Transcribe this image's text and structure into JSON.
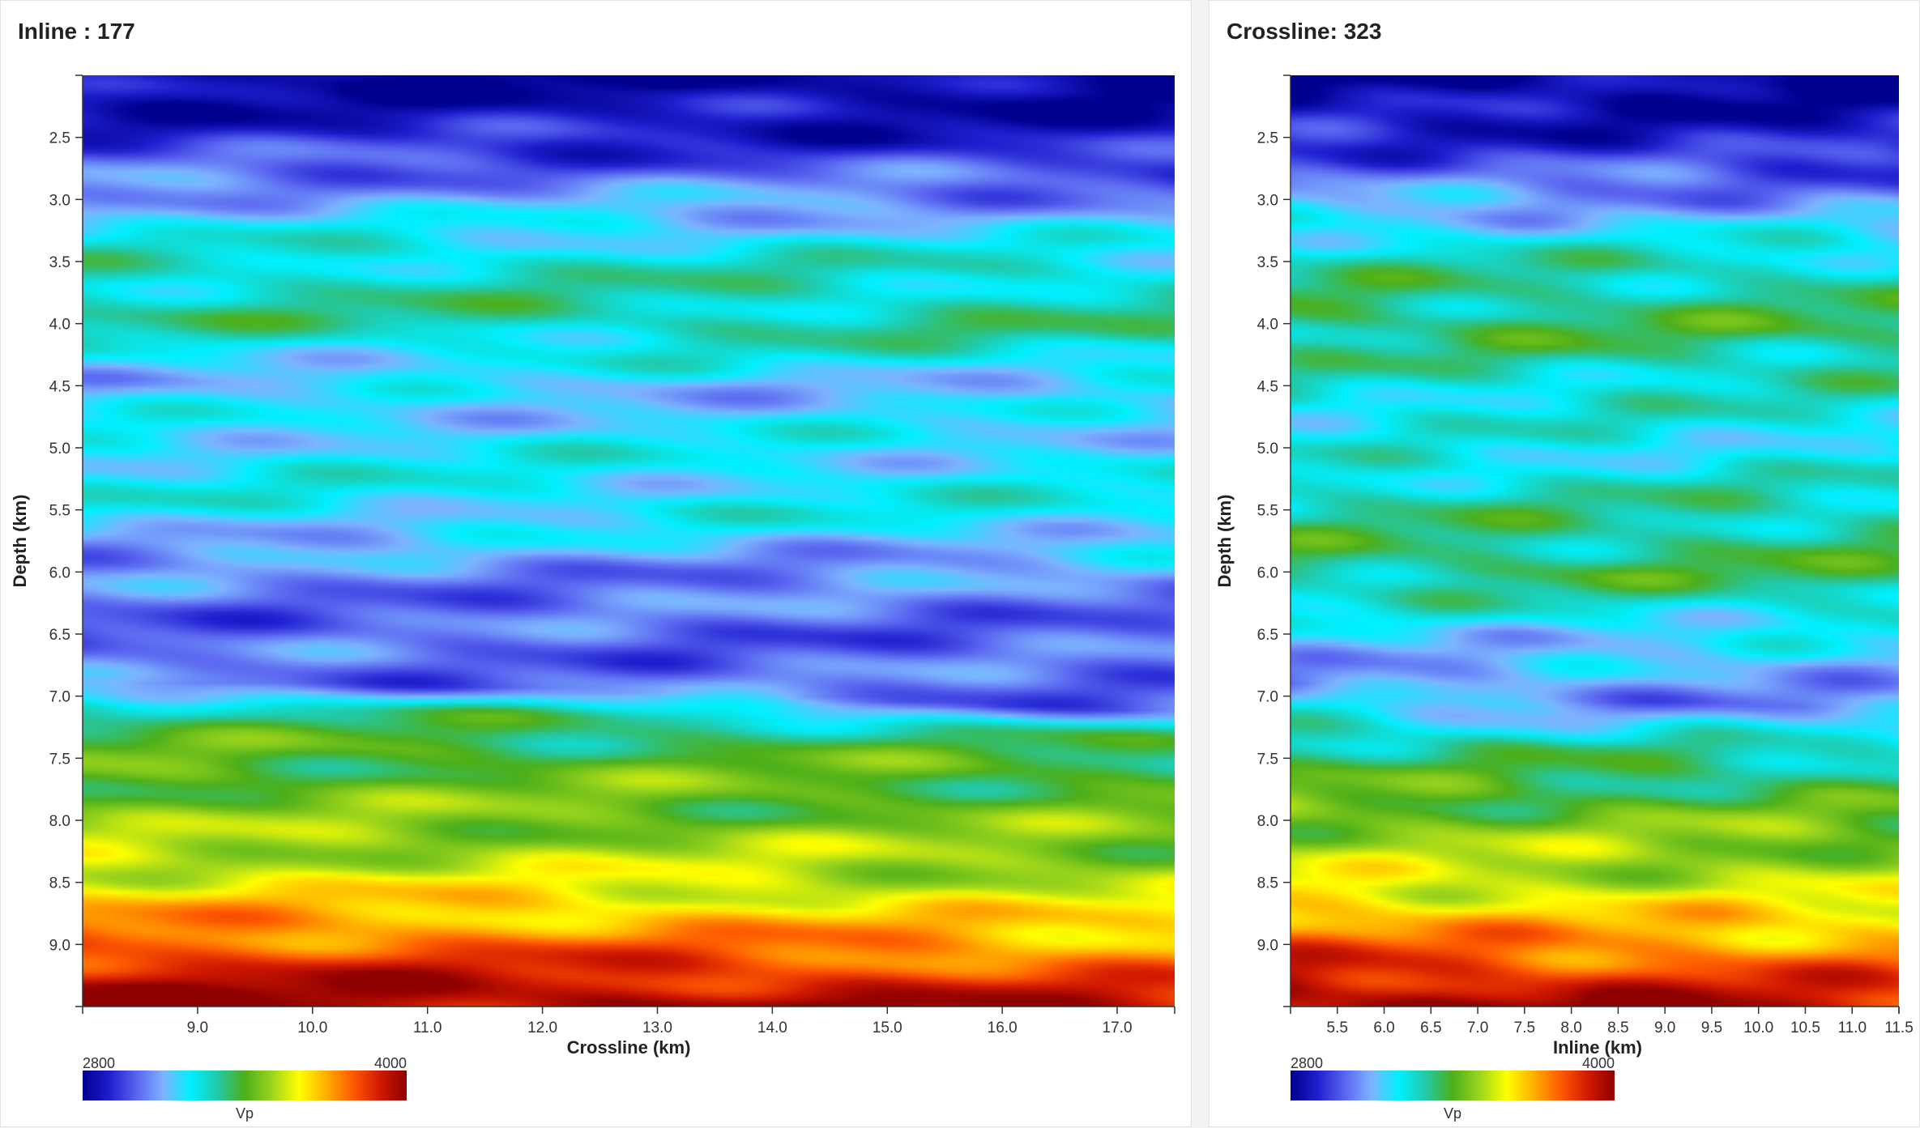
{
  "colormap": [
    "#00008f",
    "#1f1fcf",
    "#5a64f0",
    "#7db4ff",
    "#00f0ff",
    "#22c9a8",
    "#4caf1a",
    "#9ad41c",
    "#ffff00",
    "#ffb000",
    "#ff5a00",
    "#d21a00",
    "#8f0000"
  ],
  "panels": [
    {
      "title": "Inline : 177",
      "chart_data": {
        "type": "heatmap",
        "xlabel": "Crossline (km)",
        "ylabel": "Depth (km)",
        "xlim": [
          8.0,
          17.5
        ],
        "ylim": [
          2.0,
          9.5
        ],
        "xticks": [
          "9.0",
          "10.0",
          "11.0",
          "12.0",
          "13.0",
          "14.0",
          "15.0",
          "16.0",
          "17.0"
        ],
        "yticks": [
          "2.5",
          "3.0",
          "3.5",
          "4.0",
          "4.5",
          "5.0",
          "5.5",
          "6.0",
          "6.5",
          "7.0",
          "7.5",
          "8.0",
          "8.5",
          "9.0"
        ],
        "colorbar": {
          "label": "Vp",
          "min": "2800",
          "max": "4000"
        },
        "depth_profile": [
          {
            "depth": 2.0,
            "vp": 2810
          },
          {
            "depth": 2.5,
            "vp": 2900
          },
          {
            "depth": 3.0,
            "vp": 3080
          },
          {
            "depth": 3.5,
            "vp": 3250
          },
          {
            "depth": 4.0,
            "vp": 3300
          },
          {
            "depth": 4.5,
            "vp": 3120
          },
          {
            "depth": 5.0,
            "vp": 3180
          },
          {
            "depth": 5.5,
            "vp": 3200
          },
          {
            "depth": 6.0,
            "vp": 3050
          },
          {
            "depth": 6.5,
            "vp": 3000
          },
          {
            "depth": 7.0,
            "vp": 3020
          },
          {
            "depth": 7.2,
            "vp": 3300
          },
          {
            "depth": 7.5,
            "vp": 3400
          },
          {
            "depth": 8.0,
            "vp": 3450
          },
          {
            "depth": 8.5,
            "vp": 3550
          },
          {
            "depth": 9.0,
            "vp": 3750
          },
          {
            "depth": 9.5,
            "vp": 3980
          }
        ],
        "lateral_trend": [
          {
            "x": 8.0,
            "shift": -0.35
          },
          {
            "x": 10.0,
            "shift": -0.25
          },
          {
            "x": 12.0,
            "shift": -0.15
          },
          {
            "x": 14.0,
            "shift": 0.0
          },
          {
            "x": 16.0,
            "shift": 0.25
          },
          {
            "x": 17.5,
            "shift": 0.4
          }
        ]
      }
    },
    {
      "title": "Crossline: 323",
      "chart_data": {
        "type": "heatmap",
        "xlabel": "Inline (km)",
        "ylabel": "Depth (km)",
        "xlim": [
          5.0,
          11.5
        ],
        "ylim": [
          2.0,
          9.5
        ],
        "xticks": [
          "5.5",
          "6.0",
          "6.5",
          "7.0",
          "7.5",
          "8.0",
          "8.5",
          "9.0",
          "9.5",
          "10.0",
          "10.5",
          "11.0",
          "11.5"
        ],
        "yticks": [
          "2.5",
          "3.0",
          "3.5",
          "4.0",
          "4.5",
          "5.0",
          "5.5",
          "6.0",
          "6.5",
          "7.0",
          "7.5",
          "8.0",
          "8.5",
          "9.0"
        ],
        "colorbar": {
          "label": "Vp",
          "min": "2800",
          "max": "4000"
        },
        "depth_profile": [
          {
            "depth": 2.0,
            "vp": 2810
          },
          {
            "depth": 2.5,
            "vp": 2900
          },
          {
            "depth": 3.0,
            "vp": 3080
          },
          {
            "depth": 3.5,
            "vp": 3280
          },
          {
            "depth": 4.0,
            "vp": 3350
          },
          {
            "depth": 4.5,
            "vp": 3250
          },
          {
            "depth": 5.0,
            "vp": 3200
          },
          {
            "depth": 5.5,
            "vp": 3300
          },
          {
            "depth": 6.0,
            "vp": 3350
          },
          {
            "depth": 6.5,
            "vp": 3150
          },
          {
            "depth": 7.0,
            "vp": 3050
          },
          {
            "depth": 7.4,
            "vp": 3300
          },
          {
            "depth": 8.0,
            "vp": 3450
          },
          {
            "depth": 8.5,
            "vp": 3550
          },
          {
            "depth": 9.0,
            "vp": 3750
          },
          {
            "depth": 9.5,
            "vp": 3980
          }
        ],
        "lateral_trend": [
          {
            "x": 5.0,
            "shift": -0.3
          },
          {
            "x": 7.0,
            "shift": -0.05
          },
          {
            "x": 8.0,
            "shift": 0.1
          },
          {
            "x": 9.5,
            "shift": 0.15
          },
          {
            "x": 11.5,
            "shift": 0.35
          }
        ]
      }
    }
  ]
}
